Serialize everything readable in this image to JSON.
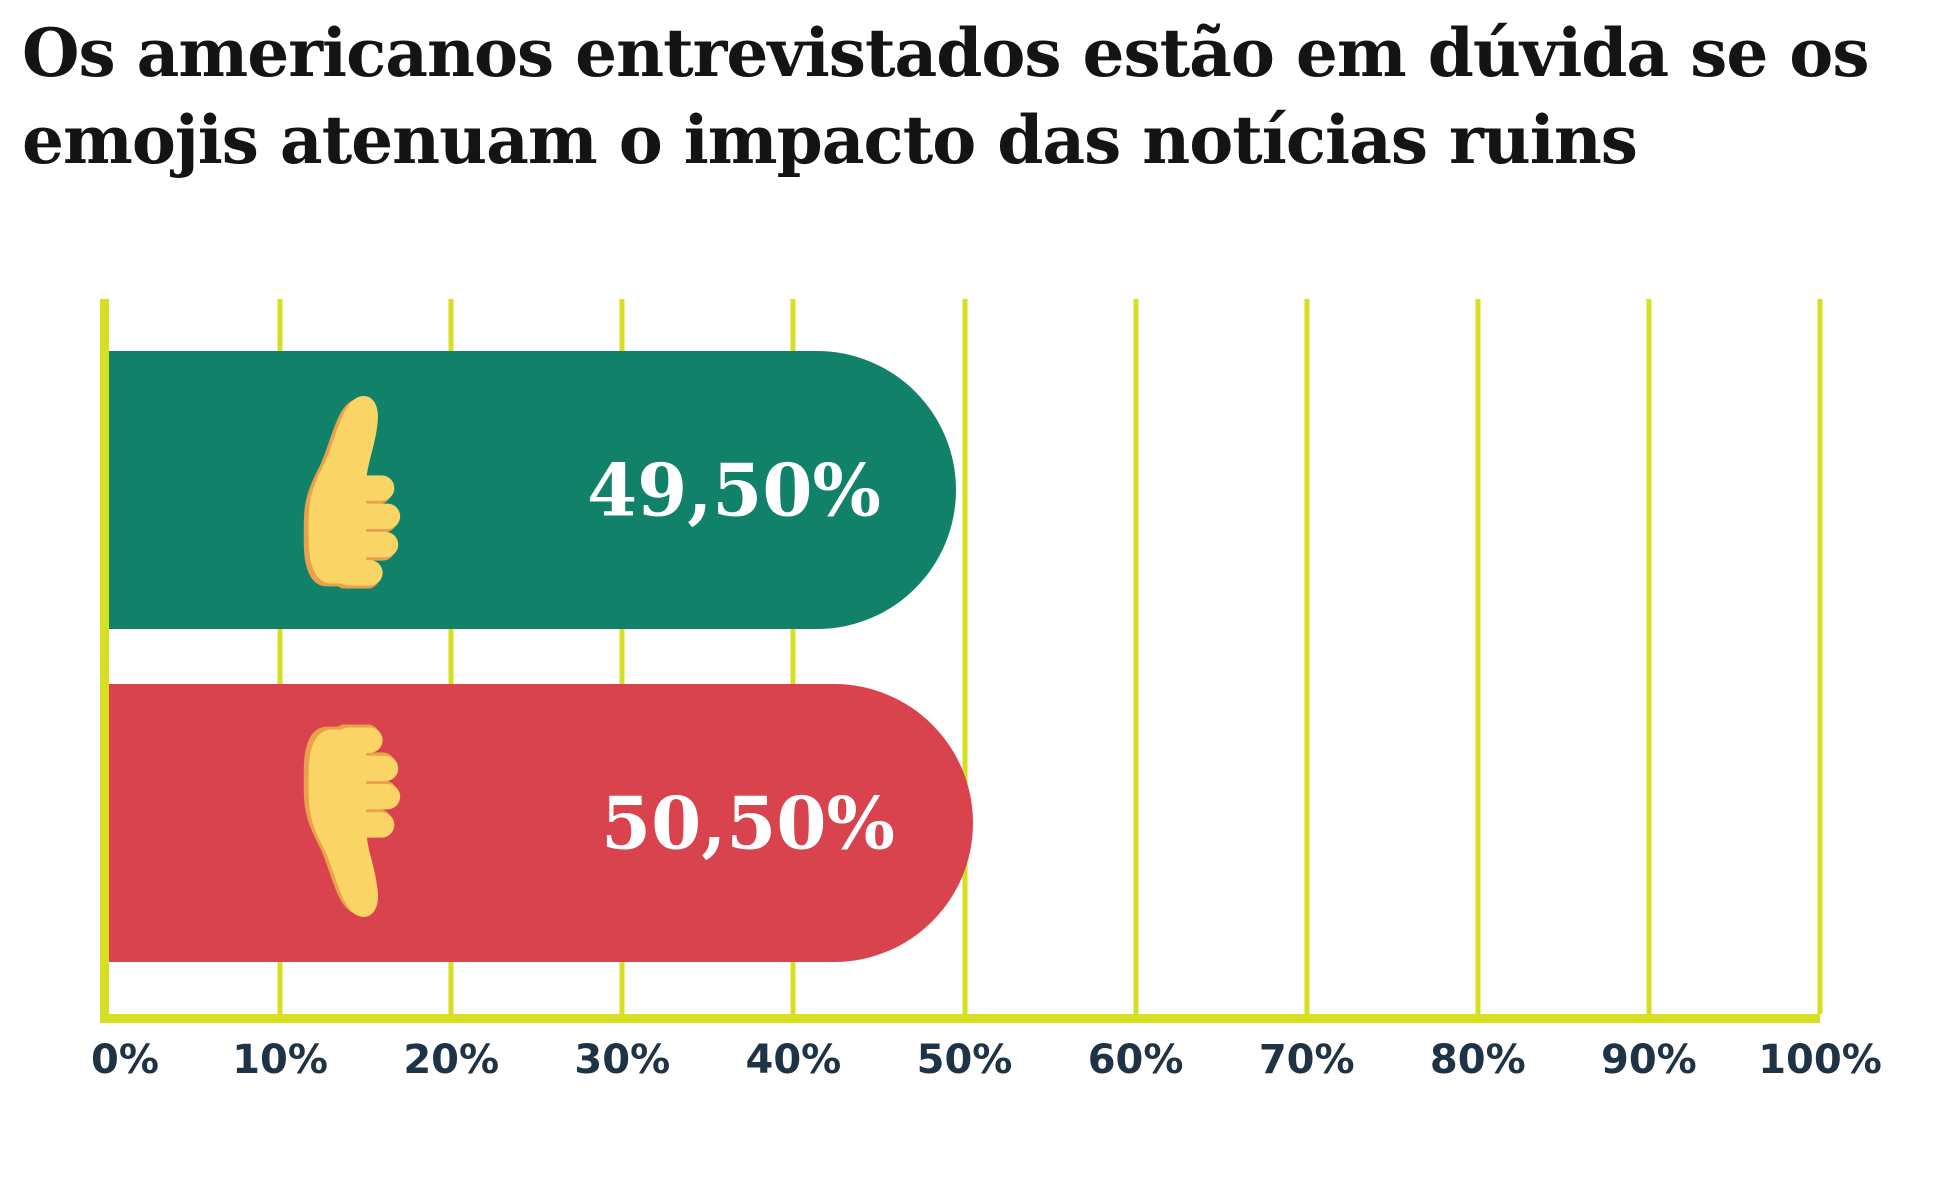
{
  "title": {
    "line1": "Os americanos entrevistados estão em dúvida se os",
    "line2": "emojis atenuam o impacto das notícias ruins"
  },
  "chart_data": {
    "type": "bar",
    "orientation": "horizontal",
    "title": "Os americanos entrevistados estão em dúvida se os emojis atenuam o impacto das notícias ruins",
    "categories": [
      "thumbs-up",
      "thumbs-down"
    ],
    "values": [
      49.5,
      50.5
    ],
    "value_labels": [
      "49,50%",
      "50,50%"
    ],
    "x_ticks": [
      "0%",
      "10%",
      "20%",
      "30%",
      "40%",
      "50%",
      "60%",
      "70%",
      "80%",
      "90%",
      "100%"
    ],
    "xlim": [
      0,
      100
    ],
    "grid": true,
    "legend": false,
    "colors": {
      "bars": [
        "#12816A",
        "#D8434E"
      ],
      "axis": "#D6DF21",
      "gridline": "#D6DF21",
      "tick_labels": "#1E3346",
      "value_labels": "#FFFFFF",
      "title": "#141414",
      "emoji_skin": "#FBD466",
      "emoji_shade": "#E9A24B",
      "background": "#FFFFFF"
    }
  }
}
